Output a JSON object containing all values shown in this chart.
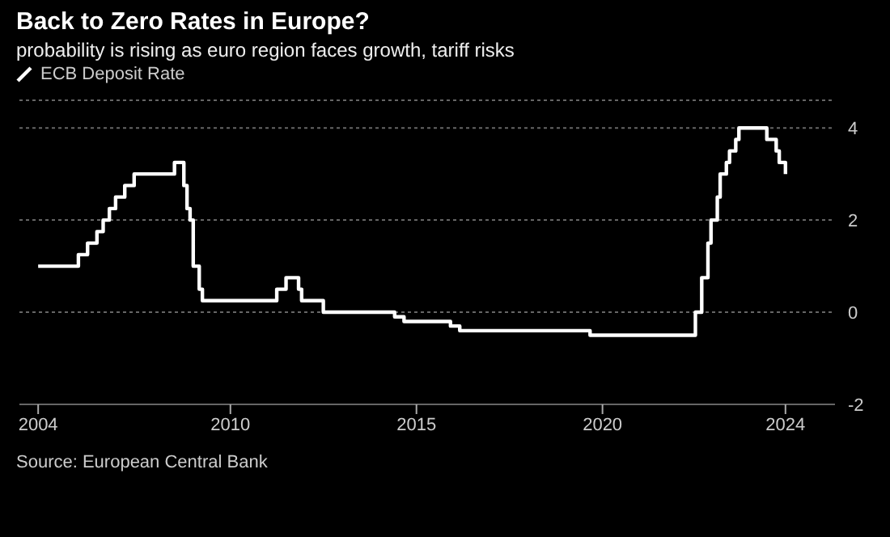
{
  "chart_data": {
    "type": "step",
    "title": "Back to Zero Rates in Europe?",
    "subtitle": "probability is rising as euro region faces growth, tariff risks",
    "x": [
      "2004-11",
      "2005-12",
      "2006-03",
      "2006-06",
      "2006-08",
      "2006-10",
      "2006-12",
      "2007-03",
      "2007-06",
      "2008-07",
      "2008-10",
      "2008-11",
      "2008-12",
      "2009-01",
      "2009-03",
      "2009-04",
      "2011-04",
      "2011-07",
      "2011-11",
      "2011-12",
      "2012-07",
      "2014-06",
      "2014-09",
      "2015-12",
      "2016-03",
      "2019-09",
      "2022-07",
      "2022-09",
      "2022-11",
      "2022-12",
      "2023-02",
      "2023-03",
      "2023-05",
      "2023-06",
      "2023-08",
      "2023-09",
      "2024-06",
      "2024-09",
      "2024-10",
      "2024-12"
    ],
    "series": [
      {
        "name": "ECB Deposit Rate",
        "color": "#ffffff",
        "values": [
          1.0,
          1.25,
          1.5,
          1.75,
          2.0,
          2.25,
          2.5,
          2.75,
          3.0,
          3.25,
          2.75,
          2.25,
          2.0,
          1.0,
          0.5,
          0.25,
          0.5,
          0.75,
          0.5,
          0.25,
          0.0,
          -0.1,
          -0.2,
          -0.3,
          -0.4,
          -0.5,
          0.0,
          0.75,
          1.5,
          2.0,
          2.5,
          3.0,
          3.25,
          3.5,
          3.75,
          4.0,
          3.75,
          3.5,
          3.25,
          3.0
        ]
      }
    ],
    "xlim": [
      "2004-05",
      "2026-04"
    ],
    "xticks": [
      {
        "value": "2004-11",
        "label": "2004"
      },
      {
        "value": "2010-01",
        "label": "2010"
      },
      {
        "value": "2015-01",
        "label": "2015"
      },
      {
        "value": "2020-01",
        "label": "2020"
      },
      {
        "value": "2024-12",
        "label": "2024"
      }
    ],
    "ylim": [
      -2,
      4.6
    ],
    "yticks": [
      -2,
      0,
      2,
      4
    ],
    "grid": "y",
    "legend": "top left",
    "annotations": [
      "Source: European Central Bank"
    ]
  }
}
